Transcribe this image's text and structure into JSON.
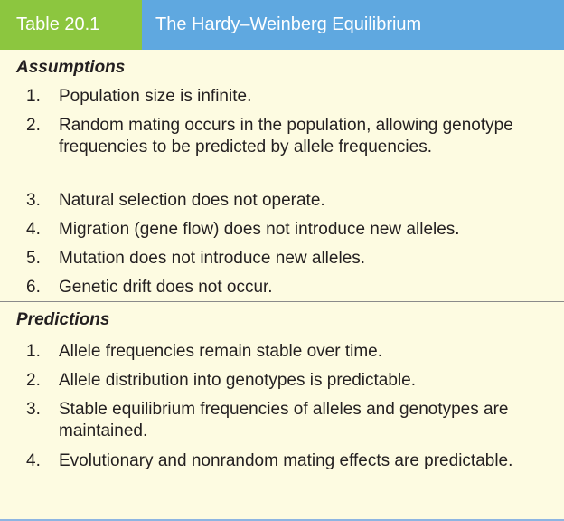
{
  "header": {
    "table_number": "Table 20.1",
    "title": "The Hardy–Weinberg Equilibrium"
  },
  "assumptions": {
    "heading": "Assumptions",
    "items": [
      {
        "num": "1.",
        "text": "Population size is infinite."
      },
      {
        "num": "2.",
        "text": "Random mating occurs in the population, allowing genotype frequencies to be predicted by allele frequencies."
      },
      {
        "num": "3.",
        "text": "Natural selection does not operate."
      },
      {
        "num": "4.",
        "text": "Migration (gene flow) does not introduce new alleles."
      },
      {
        "num": "5.",
        "text": "Mutation does not introduce new alleles."
      },
      {
        "num": "6.",
        "text": "Genetic drift does not occur."
      }
    ]
  },
  "predictions": {
    "heading": "Predictions",
    "items": [
      {
        "num": "1.",
        "text": "Allele frequencies remain stable over time."
      },
      {
        "num": "2.",
        "text": "Allele distribution into genotypes is predictable."
      },
      {
        "num": "3.",
        "text": "Stable equilibrium frequencies of alleles and genotypes are maintained."
      },
      {
        "num": "4.",
        "text": "Evolutionary and nonrandom mating effects are predictable."
      }
    ]
  },
  "colors": {
    "header_number_bg": "#8cc63f",
    "header_title_bg": "#5fa8e0",
    "body_bg": "#fdfbe1"
  }
}
